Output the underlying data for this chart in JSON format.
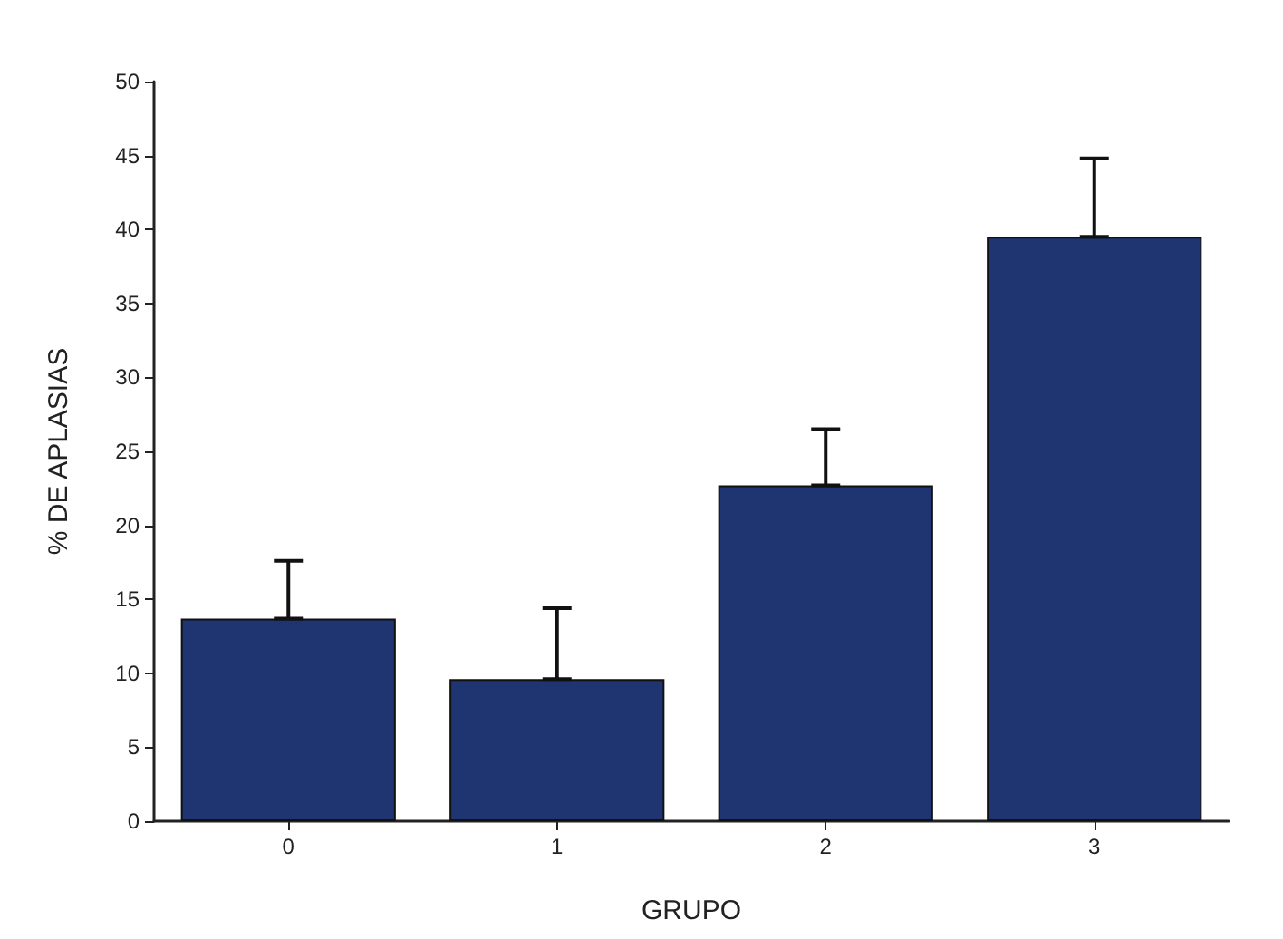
{
  "chart_data": {
    "type": "bar",
    "xlabel": "GRUPO",
    "ylabel": "% DE APLASIAS",
    "categories": [
      "0",
      "1",
      "2",
      "3"
    ],
    "values": [
      13.7,
      9.6,
      22.7,
      39.5
    ],
    "errors": [
      [
        13.7,
        17.6
      ],
      [
        9.6,
        14.4
      ],
      [
        22.7,
        26.5
      ],
      [
        39.5,
        44.8
      ]
    ],
    "color": "#1f3572",
    "ylim": [
      0,
      50
    ],
    "yticks": [
      0,
      5,
      10,
      15,
      20,
      25,
      30,
      35,
      40,
      45,
      50
    ],
    "grid": false
  }
}
